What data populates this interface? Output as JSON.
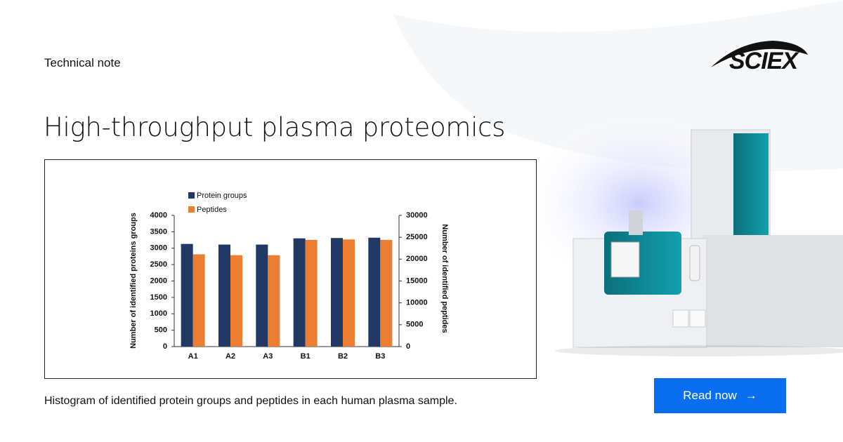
{
  "header": {
    "label": "Technical note",
    "title": "High-throughput plasma proteomics",
    "logo": "SCIEX"
  },
  "caption": "Histogram of identified protein groups and peptides in each human plasma sample.",
  "button": {
    "label": "Read now",
    "icon": "→"
  },
  "chart_data": {
    "type": "bar",
    "ylabel": "Number of identified proteins groups",
    "y2label": "Number of identified peptides",
    "categories": [
      "A1",
      "A2",
      "A3",
      "B1",
      "B2",
      "B3"
    ],
    "series": [
      {
        "name": "Protein groups",
        "color": "#1f3864",
        "values": [
          3130,
          3110,
          3110,
          3300,
          3310,
          3320
        ]
      },
      {
        "name": "Peptides",
        "color": "#ed7d31",
        "axis": "y2",
        "values": [
          21100,
          20900,
          20900,
          24400,
          24500,
          24400
        ]
      }
    ],
    "ylim": [
      0,
      4000
    ],
    "yticks": [
      0,
      500,
      1000,
      1500,
      2000,
      2500,
      3000,
      3500,
      4000
    ],
    "y2lim": [
      0,
      30000
    ],
    "y2ticks": [
      0,
      5000,
      10000,
      15000,
      20000,
      25000,
      30000
    ]
  }
}
